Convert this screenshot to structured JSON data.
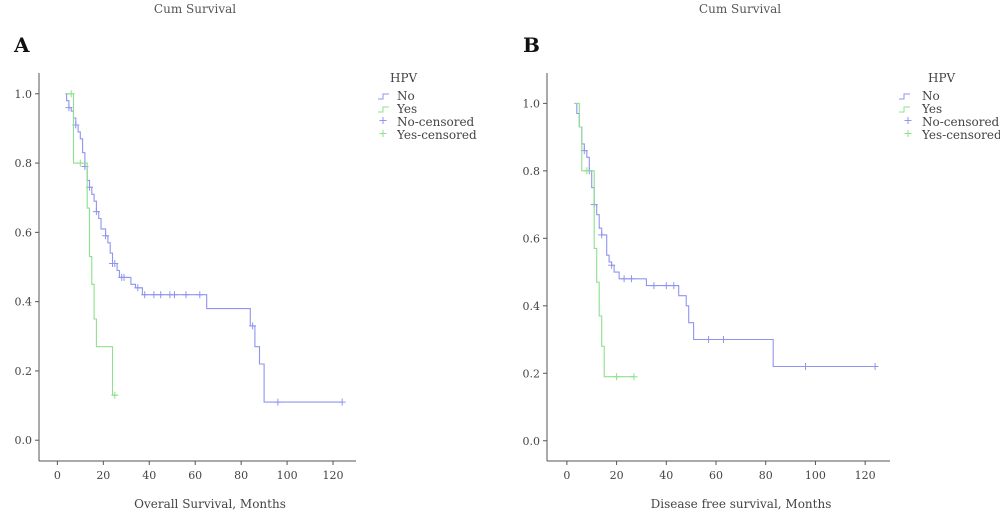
{
  "chart_data": [
    {
      "panel": "A",
      "type": "line",
      "top_label": "Cum Survival",
      "xlabel": "Overall Survival, Months",
      "ylabel": "",
      "xlim": [
        -8,
        130
      ],
      "ylim": [
        -0.06,
        1.06
      ],
      "xticks": [
        0,
        20,
        40,
        60,
        80,
        100,
        120
      ],
      "yticks": [
        0.0,
        0.2,
        0.4,
        0.6,
        0.8,
        1.0
      ],
      "legend": {
        "title": "HPV",
        "entries": [
          "No",
          "Yes",
          "No-censored",
          "Yes-censored"
        ],
        "placement": "top-right"
      },
      "series": [
        {
          "name": "No",
          "color": "#8f95ef",
          "steps": [
            [
              3.5,
              1.0
            ],
            [
              4,
              0.98
            ],
            [
              5,
              0.96
            ],
            [
              6,
              0.95
            ],
            [
              7,
              0.93
            ],
            [
              8,
              0.91
            ],
            [
              9,
              0.89
            ],
            [
              10,
              0.87
            ],
            [
              11,
              0.83
            ],
            [
              12,
              0.79
            ],
            [
              13,
              0.75
            ],
            [
              14,
              0.73
            ],
            [
              15,
              0.71
            ],
            [
              16,
              0.69
            ],
            [
              17,
              0.66
            ],
            [
              18,
              0.64
            ],
            [
              19,
              0.61
            ],
            [
              21,
              0.59
            ],
            [
              22,
              0.57
            ],
            [
              23,
              0.54
            ],
            [
              24,
              0.51
            ],
            [
              26,
              0.49
            ],
            [
              27,
              0.47
            ],
            [
              32,
              0.45
            ],
            [
              34,
              0.44
            ],
            [
              37,
              0.42
            ],
            [
              65,
              0.38
            ],
            [
              84,
              0.33
            ],
            [
              86,
              0.27
            ],
            [
              88,
              0.22
            ],
            [
              90,
              0.11
            ],
            [
              124,
              0.11
            ]
          ],
          "censored": [
            [
              5,
              0.96
            ],
            [
              8,
              0.91
            ],
            [
              12,
              0.79
            ],
            [
              14,
              0.73
            ],
            [
              17,
              0.66
            ],
            [
              21,
              0.59
            ],
            [
              24,
              0.51
            ],
            [
              25,
              0.51
            ],
            [
              28,
              0.47
            ],
            [
              29,
              0.47
            ],
            [
              35,
              0.44
            ],
            [
              38,
              0.42
            ],
            [
              42,
              0.42
            ],
            [
              45,
              0.42
            ],
            [
              49,
              0.42
            ],
            [
              51,
              0.42
            ],
            [
              56,
              0.42
            ],
            [
              62,
              0.42
            ],
            [
              85,
              0.33
            ],
            [
              96,
              0.11
            ],
            [
              124,
              0.11
            ]
          ]
        },
        {
          "name": "Yes",
          "color": "#8ee08e",
          "steps": [
            [
              4,
              1.0
            ],
            [
              7,
              0.8
            ],
            [
              12,
              0.8
            ],
            [
              13,
              0.67
            ],
            [
              14,
              0.53
            ],
            [
              15,
              0.45
            ],
            [
              16,
              0.35
            ],
            [
              17,
              0.27
            ],
            [
              23,
              0.27
            ],
            [
              24,
              0.13
            ],
            [
              26,
              0.13
            ]
          ],
          "censored": [
            [
              6,
              1.0
            ],
            [
              10,
              0.8
            ],
            [
              25,
              0.13
            ]
          ]
        }
      ]
    },
    {
      "panel": "B",
      "type": "line",
      "top_label": "Cum Survival",
      "xlabel": "Disease free survival, Months",
      "ylabel": "",
      "xlim": [
        -8,
        130
      ],
      "ylim": [
        -0.06,
        1.09
      ],
      "xticks": [
        0,
        20,
        40,
        60,
        80,
        100,
        120
      ],
      "yticks": [
        0.0,
        0.2,
        0.4,
        0.6,
        0.8,
        1.0
      ],
      "legend": {
        "title": "HPV",
        "entries": [
          "No",
          "Yes",
          "No-censored",
          "Yes-censored"
        ],
        "placement": "top-right"
      },
      "series": [
        {
          "name": "No",
          "color": "#8f95ef",
          "steps": [
            [
              3,
              1.0
            ],
            [
              4,
              0.97
            ],
            [
              5,
              0.93
            ],
            [
              6,
              0.88
            ],
            [
              7,
              0.86
            ],
            [
              8,
              0.84
            ],
            [
              9,
              0.8
            ],
            [
              10,
              0.75
            ],
            [
              11,
              0.7
            ],
            [
              12,
              0.67
            ],
            [
              13,
              0.63
            ],
            [
              14,
              0.61
            ],
            [
              16,
              0.55
            ],
            [
              17,
              0.53
            ],
            [
              18,
              0.52
            ],
            [
              19,
              0.5
            ],
            [
              21,
              0.48
            ],
            [
              32,
              0.46
            ],
            [
              45,
              0.43
            ],
            [
              48,
              0.4
            ],
            [
              49,
              0.35
            ],
            [
              51,
              0.3
            ],
            [
              83,
              0.22
            ],
            [
              124,
              0.22
            ]
          ],
          "censored": [
            [
              7,
              0.86
            ],
            [
              9,
              0.8
            ],
            [
              11,
              0.7
            ],
            [
              14,
              0.61
            ],
            [
              18,
              0.52
            ],
            [
              23,
              0.48
            ],
            [
              26,
              0.48
            ],
            [
              35,
              0.46
            ],
            [
              40,
              0.46
            ],
            [
              43,
              0.46
            ],
            [
              57,
              0.3
            ],
            [
              63,
              0.3
            ],
            [
              96,
              0.22
            ],
            [
              124,
              0.22
            ]
          ]
        },
        {
          "name": "Yes",
          "color": "#8ee08e",
          "steps": [
            [
              3,
              1.0
            ],
            [
              5,
              0.93
            ],
            [
              6,
              0.8
            ],
            [
              10,
              0.8
            ],
            [
              11,
              0.57
            ],
            [
              12,
              0.47
            ],
            [
              13,
              0.37
            ],
            [
              14,
              0.28
            ],
            [
              15,
              0.19
            ],
            [
              27,
              0.19
            ]
          ],
          "censored": [
            [
              8,
              0.8
            ],
            [
              20,
              0.19
            ],
            [
              27,
              0.19
            ]
          ]
        }
      ]
    }
  ]
}
